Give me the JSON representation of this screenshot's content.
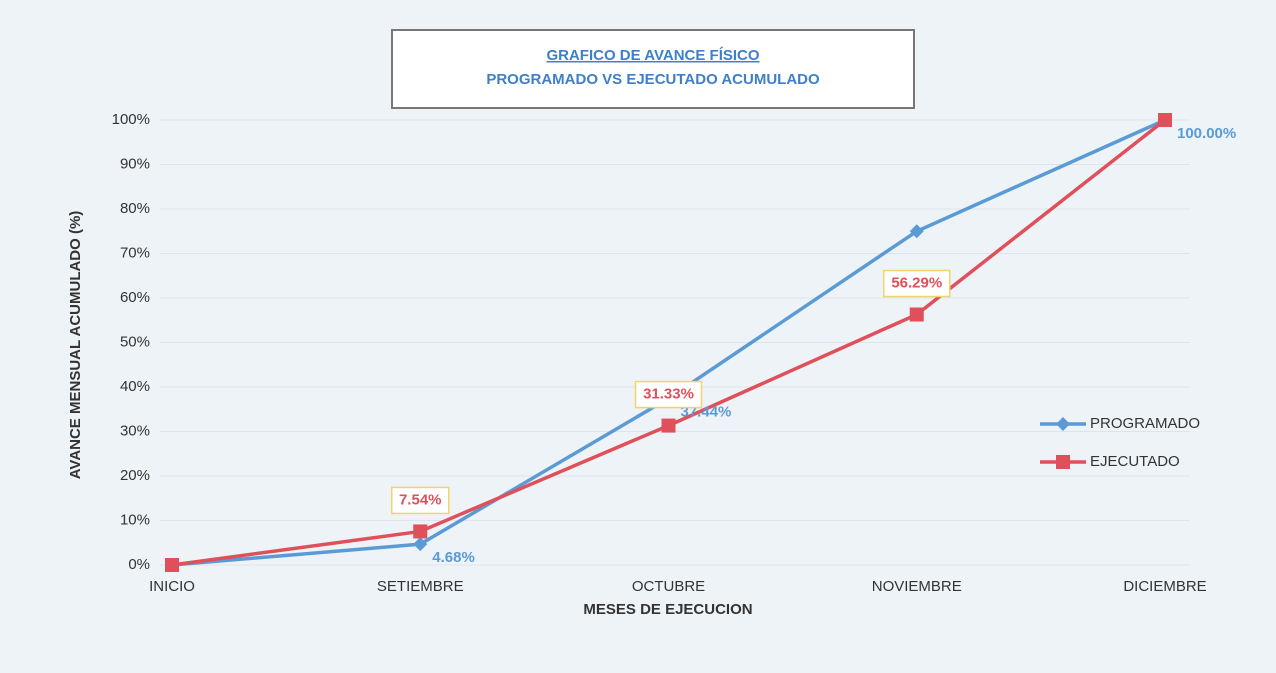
{
  "chart_data": {
    "type": "line",
    "title": [
      "GRAFICO DE AVANCE FÍSICO",
      "PROGRAMADO VS EJECUTADO ACUMULADO"
    ],
    "x_label": "MESES DE EJECUCION",
    "y_label": "AVANCE MENSUAL ACUMULADO (%)",
    "categories": [
      "INICIO",
      "SETIEMBRE",
      "OCTUBRE",
      "NOVIEMBRE",
      "DICIEMBRE"
    ],
    "series": [
      {
        "name": "PROGRAMADO",
        "color": "#5b9bd5",
        "marker": "diamond",
        "values": [
          0,
          4.68,
          37.44,
          75,
          100
        ],
        "value_labels": [
          null,
          "4.68%",
          "37.44%",
          null,
          "100.00%"
        ]
      },
      {
        "name": "EJECUTADO",
        "color": "#e0505a",
        "marker": "square",
        "values": [
          0,
          7.54,
          31.33,
          56.29,
          100
        ],
        "value_labels": [
          null,
          "7.54%",
          "31.33%",
          "56.29%",
          null
        ]
      }
    ],
    "ylim": [
      0,
      100
    ],
    "yticks": [
      {
        "value": 0,
        "label": "0%"
      },
      {
        "value": 10,
        "label": "10%"
      },
      {
        "value": 20,
        "label": "20%"
      },
      {
        "value": 30,
        "label": "30%"
      },
      {
        "value": 40,
        "label": "40%"
      },
      {
        "value": 50,
        "label": "50%"
      },
      {
        "value": 60,
        "label": "60%"
      },
      {
        "value": 70,
        "label": "70%"
      },
      {
        "value": 80,
        "label": "80%"
      },
      {
        "value": 90,
        "label": "90%"
      },
      {
        "value": 100,
        "label": "100%"
      }
    ],
    "grid": true,
    "legend": "right"
  }
}
